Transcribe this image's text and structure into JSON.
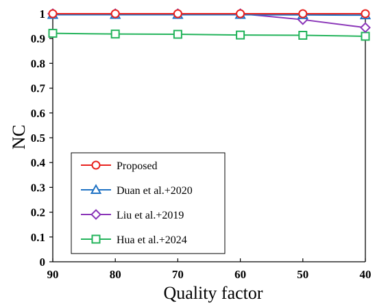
{
  "chart_data": {
    "type": "line",
    "xlabel": "Quality factor",
    "ylabel": "NC",
    "x": [
      90,
      80,
      70,
      60,
      50,
      40
    ],
    "x_ticks": [
      "90",
      "80",
      "70",
      "60",
      "50",
      "40"
    ],
    "ylim": [
      0,
      1
    ],
    "y_ticks": [
      "0",
      "0.1",
      "0.2",
      "0.3",
      "0.4",
      "0.5",
      "0.6",
      "0.7",
      "0.8",
      "0.9",
      "1"
    ],
    "grid": false,
    "legend_position": "bottom-left",
    "series": [
      {
        "name": "Proposed",
        "marker": "circle",
        "color": "#e8221e",
        "values": [
          1.0,
          1.0,
          1.0,
          1.0,
          1.0,
          1.0
        ]
      },
      {
        "name": "Duan et al.+2020",
        "marker": "triangle",
        "color": "#1f72c4",
        "values": [
          0.996,
          0.996,
          0.996,
          0.996,
          0.995,
          0.994
        ]
      },
      {
        "name": "Liu et al.+2019",
        "marker": "diamond",
        "color": "#8a35b8",
        "values": [
          1.0,
          1.0,
          1.0,
          1.0,
          0.976,
          0.944
        ]
      },
      {
        "name": "Hua et al.+2024",
        "marker": "square",
        "color": "#22b35a",
        "values": [
          0.921,
          0.918,
          0.917,
          0.914,
          0.913,
          0.909
        ]
      }
    ]
  }
}
